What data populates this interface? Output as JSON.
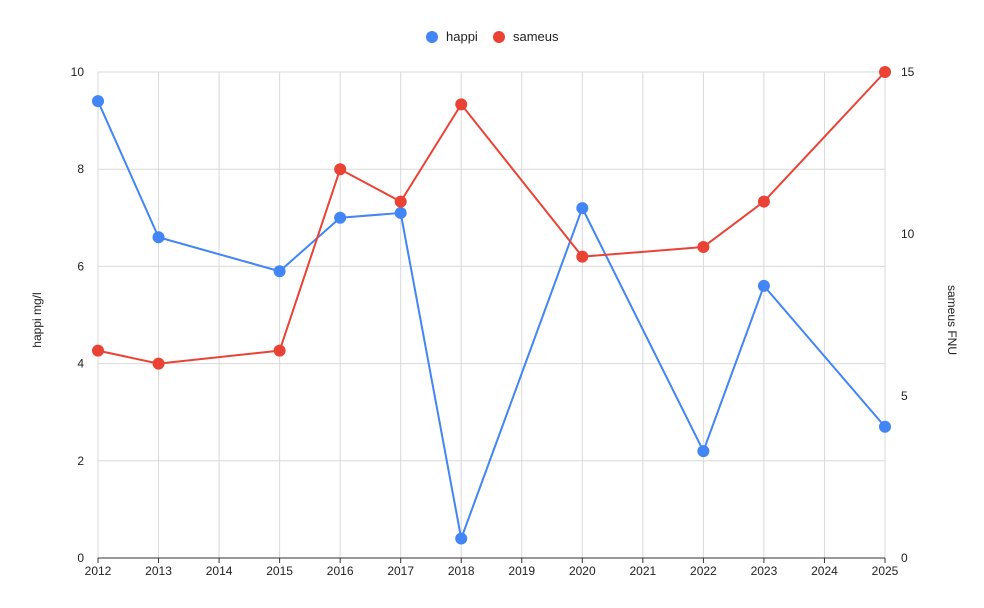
{
  "chart_data": {
    "type": "line",
    "x": [
      2012,
      2013,
      2014,
      2015,
      2016,
      2017,
      2018,
      2019,
      2020,
      2021,
      2022,
      2023,
      2024,
      2025
    ],
    "xticks": [
      "2012",
      "2013",
      "2014",
      "2015",
      "2016",
      "2017",
      "2018",
      "2019",
      "2020",
      "2021",
      "2022",
      "2023",
      "2024",
      "2025"
    ],
    "series": [
      {
        "name": "happi",
        "axis": "left",
        "color": "#4285f4",
        "points": [
          [
            2012,
            9.4
          ],
          [
            2013,
            6.6
          ],
          [
            2015,
            5.9
          ],
          [
            2016,
            7.0
          ],
          [
            2017,
            7.1
          ],
          [
            2018,
            0.4
          ],
          [
            2020,
            7.2
          ],
          [
            2022,
            2.2
          ],
          [
            2023,
            5.6
          ],
          [
            2025,
            2.7
          ]
        ]
      },
      {
        "name": "sameus",
        "axis": "right",
        "color": "#ea4335",
        "points": [
          [
            2012,
            6.4
          ],
          [
            2013,
            6.0
          ],
          [
            2015,
            6.4
          ],
          [
            2016,
            12.0
          ],
          [
            2017,
            11.0
          ],
          [
            2018,
            14.0
          ],
          [
            2020,
            9.3
          ],
          [
            2022,
            9.6
          ],
          [
            2023,
            11.0
          ],
          [
            2025,
            15.0
          ]
        ]
      }
    ],
    "ylabel_left": "happi mg/l",
    "ylabel_right": "sameus FNU",
    "ylim_left": [
      0,
      10
    ],
    "ylim_right": [
      0,
      15
    ],
    "yticks_left": [
      "0",
      "2",
      "4",
      "6",
      "8",
      "10"
    ],
    "yticks_right": [
      "0",
      "5",
      "10",
      "15"
    ],
    "legend": {
      "position": "top-center",
      "entries": [
        "happi",
        "sameus"
      ]
    },
    "grid": true
  }
}
